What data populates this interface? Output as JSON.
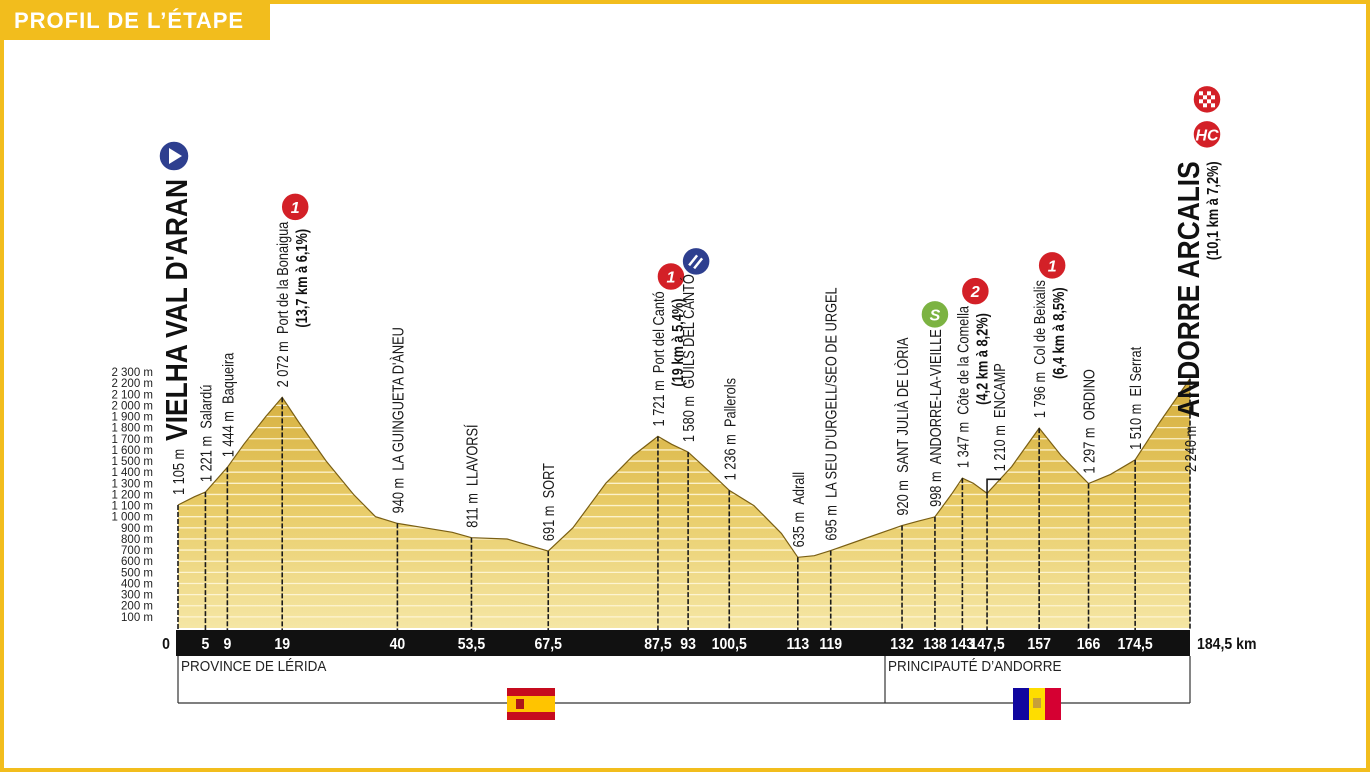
{
  "chart_data": {
    "type": "area",
    "title": "PROFIL DE L’ÉTAPE",
    "color": "#e4c45a",
    "grid": true,
    "xlim": [
      0,
      184.5
    ],
    "ylim": [
      0,
      2300
    ],
    "xticks": [
      0,
      5,
      9,
      19,
      40,
      {
        "value": 53.5,
        "label": "53,5"
      },
      {
        "value": 67.5,
        "label": "67,5"
      },
      {
        "value": 87.5,
        "label": "87,5"
      },
      93,
      {
        "value": 100.5,
        "label": "100,5"
      },
      113,
      119,
      132,
      138,
      143,
      {
        "value": 147.5,
        "label": "147,5"
      },
      157,
      166,
      {
        "value": 174.5,
        "label": "174,5"
      },
      {
        "value": 184.5,
        "label": "184,5 km"
      }
    ],
    "yticks": [
      {
        "value": 100,
        "label": "100 m"
      },
      {
        "value": 200,
        "label": "200 m"
      },
      {
        "value": 300,
        "label": "300 m"
      },
      {
        "value": 400,
        "label": "400 m"
      },
      {
        "value": 500,
        "label": "500 m"
      },
      {
        "value": 600,
        "label": "600 m"
      },
      {
        "value": 700,
        "label": "700 m"
      },
      {
        "value": 800,
        "label": "800 m"
      },
      {
        "value": 900,
        "label": "900 m"
      },
      {
        "value": 1000,
        "label": "1 000 m"
      },
      {
        "value": 1100,
        "label": "1 100 m"
      },
      {
        "value": 1200,
        "label": "1 200 m"
      },
      {
        "value": 1300,
        "label": "1 300 m"
      },
      {
        "value": 1400,
        "label": "1 400 m"
      },
      {
        "value": 1500,
        "label": "1 500 m"
      },
      {
        "value": 1600,
        "label": "1 600 m"
      },
      {
        "value": 1700,
        "label": "1 700 m"
      },
      {
        "value": 1800,
        "label": "1 800 m"
      },
      {
        "value": 1900,
        "label": "1 900 m"
      },
      {
        "value": 2000,
        "label": "2 000 m"
      },
      {
        "value": 2100,
        "label": "2 100 m"
      },
      {
        "value": 2200,
        "label": "2 200 m"
      },
      {
        "value": 2300,
        "label": "2 300 m"
      }
    ],
    "x": [
      0,
      3,
      5,
      9,
      12,
      16,
      19,
      22,
      27,
      32,
      36,
      40,
      45,
      50,
      53.5,
      60,
      67.5,
      72,
      78,
      83,
      87.5,
      90,
      93,
      97,
      100.5,
      105,
      110,
      113,
      116,
      119,
      125,
      132,
      135,
      138,
      141,
      143,
      145,
      147.5,
      152,
      157,
      161,
      166,
      170,
      174.5,
      179,
      184.5
    ],
    "values": [
      1105,
      1180,
      1221,
      1444,
      1650,
      1900,
      2072,
      1850,
      1500,
      1200,
      1000,
      940,
      900,
      860,
      811,
      800,
      691,
      900,
      1300,
      1550,
      1721,
      1650,
      1580,
      1400,
      1236,
      1100,
      850,
      635,
      650,
      695,
      800,
      920,
      960,
      998,
      1200,
      1347,
      1300,
      1210,
      1450,
      1796,
      1550,
      1297,
      1380,
      1510,
      1850,
      2240
    ],
    "waypoints": [
      {
        "km": 0,
        "elevation": 1105,
        "elevation_label": "1 105 m",
        "name": "VIELHA VAL D'ARAN"
      },
      {
        "km": 5,
        "elevation": 1221,
        "elevation_label": "1 221 m",
        "name": "Salardú"
      },
      {
        "km": 9,
        "elevation": 1444,
        "elevation_label": "1 444 m",
        "name": "Baqueira"
      },
      {
        "km": 19,
        "elevation": 2072,
        "elevation_label": "2 072 m",
        "name": "Port de la Bonaigua",
        "detail": "(13,7 km à 6,1%)",
        "category": "1",
        "category_color": "#d32027"
      },
      {
        "km": 40,
        "elevation": 940,
        "elevation_label": "940 m",
        "name": "LA GUINGUETA D'ÀNEU"
      },
      {
        "km": 53.5,
        "elevation": 811,
        "elevation_label": "811 m",
        "name": "LLAVORSÍ"
      },
      {
        "km": 67.5,
        "elevation": 691,
        "elevation_label": "691 m",
        "name": "SORT"
      },
      {
        "km": 87.5,
        "elevation": 1721,
        "elevation_label": "1 721 m",
        "name": "Port del Cantó",
        "detail": "(19 km à 5,4%)",
        "category": "1",
        "category_color": "#d32027"
      },
      {
        "km": 93,
        "elevation": 1580,
        "elevation_label": "1 580 m",
        "name": "GUILS DEL CANTÓ"
      },
      {
        "km": 100.5,
        "elevation": 1236,
        "elevation_label": "1 236 m",
        "name": "Pallerols"
      },
      {
        "km": 113,
        "elevation": 635,
        "elevation_label": "635 m",
        "name": "Adrall"
      },
      {
        "km": 119,
        "elevation": 695,
        "elevation_label": "695 m",
        "name": "LA SEU D'URGELL/SEO DE URGEL"
      },
      {
        "km": 132,
        "elevation": 920,
        "elevation_label": "920 m",
        "name": "SANT JULIÀ DE LÒRIA"
      },
      {
        "km": 138,
        "elevation": 998,
        "elevation_label": "998 m",
        "name": "ANDORRE-LA-VIEILLE",
        "category": "S",
        "category_color": "#7cb342"
      },
      {
        "km": 143,
        "elevation": 1347,
        "elevation_label": "1 347 m",
        "name": "Côte de la Comella",
        "detail": "(4,2 km à 8,2%)",
        "category": "2",
        "category_color": "#d32027"
      },
      {
        "km": 147.5,
        "elevation": 1210,
        "elevation_label": "1 210 m",
        "name": "ENCAMP"
      },
      {
        "km": 157,
        "elevation": 1796,
        "elevation_label": "1 796 m",
        "name": "Col de Beixalis",
        "detail": "(6,4 km à 8,5%)",
        "category": "1",
        "category_color": "#d32027"
      },
      {
        "km": 166,
        "elevation": 1297,
        "elevation_label": "1 297 m",
        "name": "ORDINO"
      },
      {
        "km": 174.5,
        "elevation": 1510,
        "elevation_label": "1 510 m",
        "name": "El Serrat"
      },
      {
        "km": 184.5,
        "elevation": 2240,
        "elevation_label": "2 240 m",
        "name": "ANDORRE ARCALIS",
        "detail": "(10,1 km à 7,2%)",
        "category": "HC",
        "category_color": "#d32027"
      }
    ],
    "regions": [
      {
        "label": "PROVINCE DE LÉRIDA"
      },
      {
        "label": "PRINCIPAUTÉ D’ANDORRE"
      }
    ]
  }
}
